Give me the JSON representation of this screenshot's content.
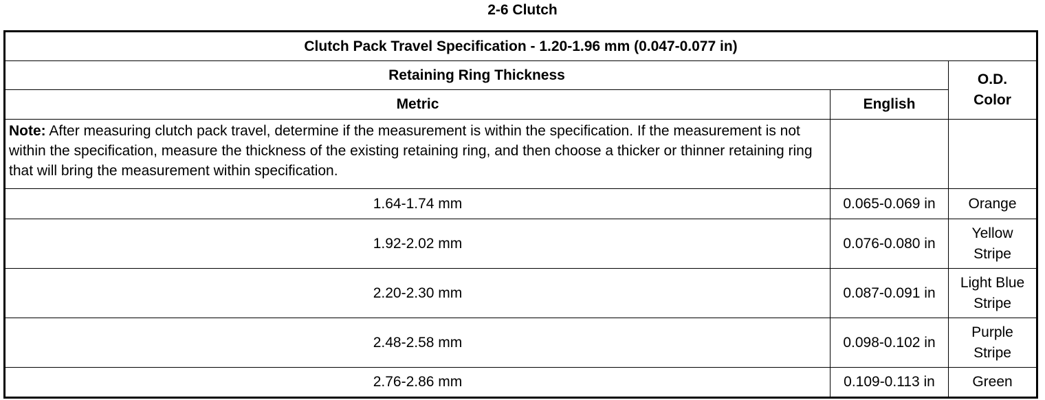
{
  "title": "2-6 Clutch",
  "table": {
    "spec_header": "Clutch Pack Travel Specification - 1.20-1.96 mm (0.047-0.077 in)",
    "group_header": "Retaining Ring Thickness",
    "col_metric": "Metric",
    "col_english": "English",
    "col_color_line1": "O.D.",
    "col_color_line2": "Color",
    "note_label": "Note:",
    "note_text": " After measuring clutch pack travel, determine if the measurement is within the specification. If the measurement is not within the specification, measure the thickness of the existing retaining ring, and then choose a thicker or thinner retaining ring that will bring the measurement within specification.",
    "rows": [
      {
        "metric": "1.64-1.74 mm",
        "english": "0.065-0.069 in",
        "color1": "Orange",
        "color2": ""
      },
      {
        "metric": "1.92-2.02 mm",
        "english": "0.076-0.080 in",
        "color1": "Yellow",
        "color2": "Stripe"
      },
      {
        "metric": "2.20-2.30 mm",
        "english": "0.087-0.091 in",
        "color1": "Light Blue",
        "color2": "Stripe"
      },
      {
        "metric": "2.48-2.58 mm",
        "english": "0.098-0.102 in",
        "color1": "Purple",
        "color2": "Stripe"
      },
      {
        "metric": "2.76-2.86 mm",
        "english": "0.109-0.113 in",
        "color1": "Green",
        "color2": ""
      }
    ]
  }
}
